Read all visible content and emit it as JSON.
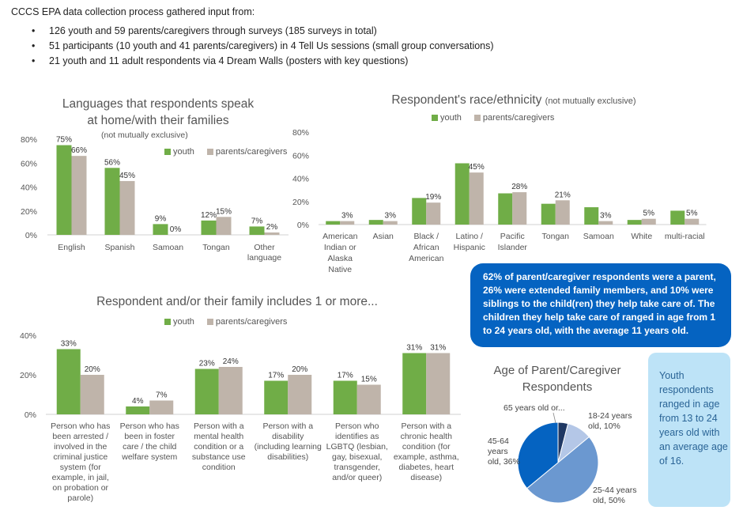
{
  "intro": {
    "heading": "CCCS EPA data collection process gathered input from:",
    "bullet_glyph": "•",
    "bullets": [
      "126 youth and 59 parents/caregivers through surveys (185 surveys in total)",
      "51 participants (10 youth and 41 parents/caregivers) in 4 Tell Us sessions (small group conversations)",
      "21 youth and 11 adult respondents via 4 Dream Walls (posters with key questions)"
    ]
  },
  "colors": {
    "youth": "#70ad47",
    "parents": "#bfb4aa",
    "axis": "#d0d0d0",
    "text": "#555555",
    "pie": [
      "#1f3864",
      "#b4c7e7",
      "#6b98d0",
      "#0563c1"
    ]
  },
  "legend": {
    "youth": "youth",
    "parents": "parents/caregivers"
  },
  "chart_data": [
    {
      "type": "bar",
      "title_lines": [
        "Languages that respondents speak",
        "at home/with their families"
      ],
      "subtitle": "(not mutually exclusive)",
      "categories": [
        "English",
        "Spanish",
        "Samoan",
        "Tongan",
        "Other language"
      ],
      "category_lines": [
        [
          "English"
        ],
        [
          "Spanish"
        ],
        [
          "Samoan"
        ],
        [
          "Tongan"
        ],
        [
          "Other",
          "language"
        ]
      ],
      "series": [
        {
          "name": "youth",
          "values": [
            75,
            56,
            9,
            12,
            7
          ]
        },
        {
          "name": "parents/caregivers",
          "values": [
            66,
            45,
            0,
            15,
            2
          ]
        }
      ],
      "ylim": [
        0,
        80
      ],
      "yticks": [
        0,
        20,
        40,
        60,
        80
      ],
      "ytick_labels": [
        "0%",
        "20%",
        "40%",
        "60%",
        "80%"
      ],
      "data_labels": [
        [
          "75%",
          "56%",
          "9%",
          "12%",
          "7%"
        ],
        [
          "66%",
          "45%",
          "0%",
          "15%",
          "2%"
        ]
      ],
      "legend_position": "top-right"
    },
    {
      "type": "bar",
      "title": "Respondent's race/ethnicity",
      "title_note": "(not mutually exclusive)",
      "categories": [
        "American Indian or Alaska Native",
        "Asian",
        "Black / African American",
        "Latino / Hispanic",
        "Pacific Islander",
        "Tongan",
        "Samoan",
        "White",
        "multi-racial"
      ],
      "category_lines": [
        [
          "American",
          "Indian or",
          "Alaska",
          "Native"
        ],
        [
          "Asian"
        ],
        [
          "Black /",
          "African",
          "American"
        ],
        [
          "Latino /",
          "Hispanic"
        ],
        [
          "Pacific",
          "Islander"
        ],
        [
          "Tongan"
        ],
        [
          "Samoan"
        ],
        [
          "White"
        ],
        [
          "multi-racial"
        ]
      ],
      "series": [
        {
          "name": "youth",
          "values": [
            3,
            4,
            23,
            53,
            27,
            18,
            15,
            4,
            12
          ]
        },
        {
          "name": "parents/caregivers",
          "values": [
            3,
            3,
            19,
            45,
            28,
            21,
            3,
            5,
            5
          ]
        }
      ],
      "ylim": [
        0,
        80
      ],
      "yticks": [
        0,
        20,
        40,
        60,
        80
      ],
      "ytick_labels": [
        "0%",
        "20%",
        "40%",
        "60%",
        "80%"
      ],
      "data_labels": [
        [],
        [
          "3%",
          "3%",
          "19%",
          "45%",
          "28%",
          "21%",
          "3%",
          "5%",
          "5%"
        ]
      ],
      "legend_position": "top"
    },
    {
      "type": "bar",
      "title": "Respondent and/or their family includes 1 or more...",
      "categories": [
        "Person who has been arrested / involved in the criminal justice system (for example, in jail, on probation or parole)",
        "Person who has been in foster care / the child welfare system",
        "Person with a mental health condition or a substance use condition",
        "Person with a disability (including learning disabilities)",
        "Person who identifies as LGBTQ (lesbian, gay, bisexual, transgender, and/or queer)",
        "Person with a chronic health condition (for example, asthma, diabetes, heart disease)"
      ],
      "category_lines": [
        [
          "Person who has",
          "been arrested /",
          "involved in the",
          "criminal justice",
          "system (for",
          "example, in jail,",
          "on probation or",
          "parole)"
        ],
        [
          "Person who has",
          "been in foster",
          "care / the child",
          "welfare system"
        ],
        [
          "Person with a",
          "mental health",
          "condition or a",
          "substance use",
          "condition"
        ],
        [
          "Person with a",
          "disability",
          "(including learning",
          "disabilities)"
        ],
        [
          "Person who",
          "identifies as",
          "LGBTQ (lesbian,",
          "gay, bisexual,",
          "transgender,",
          "and/or queer)"
        ],
        [
          "Person with a",
          "chronic health",
          "condition (for",
          "example, asthma,",
          "diabetes, heart",
          "disease)"
        ]
      ],
      "series": [
        {
          "name": "youth",
          "values": [
            33,
            4,
            23,
            17,
            17,
            31
          ]
        },
        {
          "name": "parents/caregivers",
          "values": [
            20,
            7,
            24,
            20,
            15,
            31
          ]
        }
      ],
      "ylim": [
        0,
        40
      ],
      "yticks": [
        0,
        20,
        40
      ],
      "ytick_labels": [
        "0%",
        "20%",
        "40%"
      ],
      "data_labels": [
        [
          "33%",
          "4%",
          "23%",
          "17%",
          "17%",
          "31%"
        ],
        [
          "20%",
          "7%",
          "24%",
          "20%",
          "15%",
          "31%"
        ]
      ],
      "legend_position": "top"
    },
    {
      "type": "pie",
      "title_lines": [
        "Age of Parent/Caregiver",
        "Respondents"
      ],
      "slices": [
        {
          "label": "65 years old or...",
          "value": 4
        },
        {
          "label": "18-24 years old, 10%",
          "value": 10
        },
        {
          "label": "25-44 years old, 50%",
          "value": 50
        },
        {
          "label": "45-64 years old, 36%",
          "value": 36
        }
      ]
    }
  ],
  "callout": {
    "text": "62% of parent/caregiver respondents were a parent, 26% were extended family members, and 10% were siblings to the child(ren) they help take care of. The children they help take care of ranged in age from 1 to 24 years old, with the average 11 years old."
  },
  "youth_note": {
    "text": "Youth respondents ranged in age from 13 to 24 years old with an average age of 16."
  },
  "pie_labels": {
    "older": "65 years old or...",
    "young_lines": [
      "18-24 years",
      "old, 10%"
    ],
    "mid_lines": [
      "25-44 years",
      "old, 50%"
    ],
    "senior_lines": [
      "45-64",
      "years",
      "old, 36%"
    ]
  }
}
